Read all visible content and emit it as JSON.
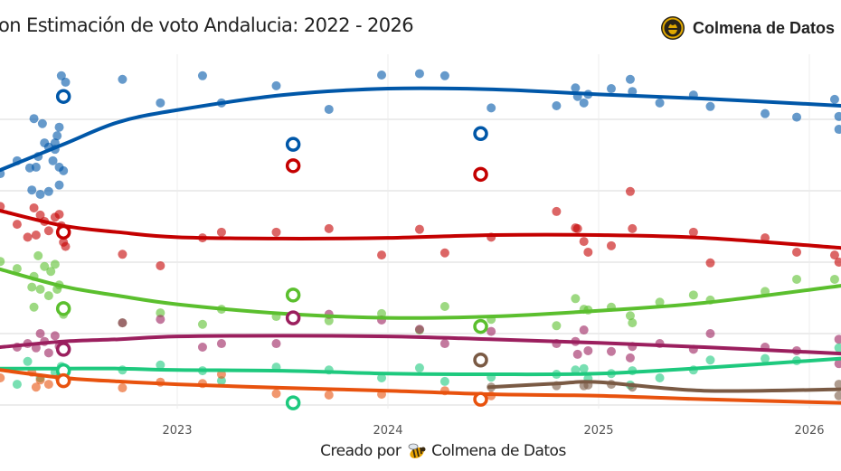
{
  "title": "on Estimación de voto Andalucia: 2022 - 2026",
  "brand": {
    "name": "Colmena de Datos",
    "icon": "bee-logo-icon"
  },
  "footer": {
    "prefix": "Creado por",
    "name": "Colmena de Datos",
    "icon": "bee-icon"
  },
  "chart_data": {
    "type": "scatter",
    "title": "on Estimación de voto Andalucia: 2022 - 2026",
    "xlim": [
      2022.16,
      2026.15
    ],
    "ylim": [
      -1.5,
      49.5
    ],
    "y_gridlines": [
      0,
      10,
      20,
      30,
      40
    ],
    "x_ticks": [
      2023,
      2024,
      2025,
      2026
    ],
    "x_tick_labels": [
      "2023",
      "2024",
      "2025",
      "2026"
    ],
    "grid": true,
    "legend": "none",
    "series": [
      {
        "color": "#0057a8",
        "trend": [
          [
            2022.16,
            32.9
          ],
          [
            2022.46,
            36.5
          ],
          [
            2022.72,
            39.6
          ],
          [
            2023.0,
            41.3
          ],
          [
            2023.5,
            43.4
          ],
          [
            2024.0,
            44.3
          ],
          [
            2024.5,
            44.2
          ],
          [
            2025.0,
            43.5
          ],
          [
            2025.5,
            42.9
          ],
          [
            2026.15,
            41.9
          ]
        ],
        "elections": [
          [
            2022.46,
            43.2
          ],
          [
            2023.55,
            36.5
          ],
          [
            2024.44,
            38.0
          ]
        ],
        "polls": [
          [
            2022.32,
            40.1
          ],
          [
            2022.36,
            39.4
          ],
          [
            2022.45,
            46.1
          ],
          [
            2022.47,
            45.2
          ],
          [
            2022.44,
            38.9
          ],
          [
            2022.33,
            33.3
          ],
          [
            2022.34,
            34.8
          ],
          [
            2022.37,
            36.7
          ],
          [
            2022.39,
            36.1
          ],
          [
            2022.42,
            35.8
          ],
          [
            2022.42,
            36.7
          ],
          [
            2022.3,
            33.2
          ],
          [
            2022.24,
            34.2
          ],
          [
            2022.44,
            33.3
          ],
          [
            2022.43,
            37.7
          ],
          [
            2022.46,
            32.8
          ],
          [
            2022.41,
            34.2
          ],
          [
            2022.16,
            32.4
          ],
          [
            2022.31,
            30.1
          ],
          [
            2022.35,
            29.5
          ],
          [
            2022.39,
            29.9
          ],
          [
            2022.44,
            30.8
          ],
          [
            2022.74,
            45.6
          ],
          [
            2022.92,
            42.3
          ],
          [
            2023.12,
            46.1
          ],
          [
            2023.21,
            42.3
          ],
          [
            2023.47,
            44.7
          ],
          [
            2023.72,
            41.4
          ],
          [
            2023.97,
            46.2
          ],
          [
            2024.15,
            46.4
          ],
          [
            2024.27,
            46.1
          ],
          [
            2024.49,
            41.6
          ],
          [
            2024.8,
            41.9
          ],
          [
            2024.89,
            44.4
          ],
          [
            2024.9,
            43.2
          ],
          [
            2024.93,
            42.3
          ],
          [
            2024.95,
            43.5
          ],
          [
            2025.06,
            44.3
          ],
          [
            2025.15,
            45.6
          ],
          [
            2025.16,
            43.9
          ],
          [
            2025.29,
            42.3
          ],
          [
            2025.45,
            43.4
          ],
          [
            2025.53,
            41.8
          ],
          [
            2025.79,
            40.8
          ],
          [
            2025.94,
            40.3
          ],
          [
            2026.12,
            42.8
          ],
          [
            2026.14,
            40.4
          ],
          [
            2026.14,
            38.6
          ]
        ]
      },
      {
        "color": "#c40000",
        "trend": [
          [
            2022.16,
            27.2
          ],
          [
            2022.46,
            25.1
          ],
          [
            2022.72,
            24.2
          ],
          [
            2023.0,
            23.5
          ],
          [
            2023.5,
            23.3
          ],
          [
            2024.0,
            23.4
          ],
          [
            2024.5,
            23.8
          ],
          [
            2025.0,
            23.8
          ],
          [
            2025.5,
            23.4
          ],
          [
            2026.15,
            22.0
          ]
        ],
        "elections": [
          [
            2022.46,
            24.2
          ],
          [
            2023.55,
            33.5
          ],
          [
            2024.44,
            32.3
          ]
        ],
        "polls": [
          [
            2022.16,
            27.8
          ],
          [
            2022.32,
            27.6
          ],
          [
            2022.35,
            26.6
          ],
          [
            2022.42,
            26.3
          ],
          [
            2022.37,
            25.7
          ],
          [
            2022.44,
            26.7
          ],
          [
            2022.33,
            23.8
          ],
          [
            2022.39,
            24.4
          ],
          [
            2022.45,
            25.1
          ],
          [
            2022.29,
            23.5
          ],
          [
            2022.46,
            22.8
          ],
          [
            2022.47,
            22.2
          ],
          [
            2022.24,
            25.3
          ],
          [
            2022.74,
            21.1
          ],
          [
            2022.92,
            19.5
          ],
          [
            2023.12,
            23.4
          ],
          [
            2023.21,
            24.2
          ],
          [
            2023.47,
            24.2
          ],
          [
            2023.72,
            24.7
          ],
          [
            2023.97,
            21.0
          ],
          [
            2024.15,
            24.6
          ],
          [
            2024.27,
            21.3
          ],
          [
            2024.49,
            23.5
          ],
          [
            2024.8,
            27.1
          ],
          [
            2024.89,
            24.8
          ],
          [
            2024.9,
            24.7
          ],
          [
            2024.93,
            22.9
          ],
          [
            2024.95,
            21.4
          ],
          [
            2025.06,
            22.3
          ],
          [
            2025.15,
            29.9
          ],
          [
            2025.16,
            24.7
          ],
          [
            2025.45,
            24.2
          ],
          [
            2025.53,
            19.9
          ],
          [
            2025.79,
            23.4
          ],
          [
            2025.94,
            21.4
          ],
          [
            2026.12,
            21.0
          ],
          [
            2026.14,
            20.0
          ]
        ]
      },
      {
        "color": "#5bbf2e",
        "trend": [
          [
            2022.16,
            19.0
          ],
          [
            2022.46,
            16.6
          ],
          [
            2022.72,
            15.3
          ],
          [
            2023.0,
            14.1
          ],
          [
            2023.5,
            12.8
          ],
          [
            2024.0,
            12.2
          ],
          [
            2024.5,
            12.4
          ],
          [
            2025.0,
            13.2
          ],
          [
            2025.5,
            14.3
          ],
          [
            2026.15,
            16.7
          ]
        ],
        "elections": [
          [
            2022.46,
            13.5
          ],
          [
            2023.55,
            15.4
          ],
          [
            2024.44,
            11.0
          ]
        ],
        "polls": [
          [
            2022.16,
            20.1
          ],
          [
            2022.24,
            19.1
          ],
          [
            2022.34,
            20.9
          ],
          [
            2022.37,
            19.4
          ],
          [
            2022.4,
            18.7
          ],
          [
            2022.42,
            19.7
          ],
          [
            2022.32,
            18.0
          ],
          [
            2022.31,
            16.5
          ],
          [
            2022.35,
            16.2
          ],
          [
            2022.39,
            15.3
          ],
          [
            2022.43,
            16.2
          ],
          [
            2022.44,
            16.8
          ],
          [
            2022.32,
            13.7
          ],
          [
            2022.46,
            12.7
          ],
          [
            2022.74,
            11.5
          ],
          [
            2022.92,
            12.9
          ],
          [
            2023.12,
            11.3
          ],
          [
            2023.21,
            13.4
          ],
          [
            2023.47,
            12.4
          ],
          [
            2023.72,
            11.8
          ],
          [
            2023.97,
            12.8
          ],
          [
            2024.15,
            10.5
          ],
          [
            2024.27,
            13.8
          ],
          [
            2024.49,
            12.0
          ],
          [
            2024.8,
            11.1
          ],
          [
            2024.89,
            14.9
          ],
          [
            2024.93,
            13.4
          ],
          [
            2024.95,
            13.3
          ],
          [
            2025.06,
            13.7
          ],
          [
            2025.15,
            12.5
          ],
          [
            2025.16,
            11.5
          ],
          [
            2025.29,
            14.4
          ],
          [
            2025.45,
            15.4
          ],
          [
            2025.53,
            14.7
          ],
          [
            2025.79,
            15.9
          ],
          [
            2025.94,
            17.6
          ],
          [
            2026.12,
            17.6
          ]
        ]
      },
      {
        "color": "#9b1f5e",
        "trend": [
          [
            2022.16,
            8.1
          ],
          [
            2022.46,
            8.9
          ],
          [
            2022.72,
            9.2
          ],
          [
            2023.0,
            9.6
          ],
          [
            2023.5,
            9.7
          ],
          [
            2024.0,
            9.6
          ],
          [
            2024.5,
            9.2
          ],
          [
            2025.0,
            8.7
          ],
          [
            2025.5,
            8.1
          ],
          [
            2026.15,
            7.2
          ]
        ],
        "elections": [
          [
            2022.46,
            7.8
          ],
          [
            2023.55,
            12.2
          ]
        ],
        "polls": [
          [
            2022.29,
            8.6
          ],
          [
            2022.35,
            10.0
          ],
          [
            2022.37,
            8.9
          ],
          [
            2022.42,
            9.7
          ],
          [
            2022.44,
            8.2
          ],
          [
            2022.33,
            8.0
          ],
          [
            2022.24,
            8.1
          ],
          [
            2022.39,
            7.3
          ],
          [
            2022.74,
            11.5
          ],
          [
            2022.92,
            12.0
          ],
          [
            2023.12,
            8.1
          ],
          [
            2023.21,
            8.6
          ],
          [
            2023.47,
            8.6
          ],
          [
            2023.72,
            12.7
          ],
          [
            2023.97,
            11.9
          ],
          [
            2024.15,
            10.6
          ],
          [
            2024.27,
            8.6
          ],
          [
            2024.49,
            10.3
          ],
          [
            2024.8,
            8.6
          ],
          [
            2024.89,
            8.9
          ],
          [
            2024.9,
            7.1
          ],
          [
            2024.93,
            10.5
          ],
          [
            2024.95,
            7.6
          ],
          [
            2025.06,
            7.5
          ],
          [
            2025.15,
            6.6
          ],
          [
            2025.16,
            8.2
          ],
          [
            2025.29,
            8.6
          ],
          [
            2025.45,
            7.8
          ],
          [
            2025.53,
            10.0
          ],
          [
            2025.79,
            8.1
          ],
          [
            2025.94,
            7.6
          ],
          [
            2026.14,
            9.2
          ],
          [
            2026.14,
            5.8
          ]
        ]
      },
      {
        "color": "#1ec97e",
        "trend": [
          [
            2022.16,
            5.1
          ],
          [
            2022.46,
            5.1
          ],
          [
            2022.72,
            5.1
          ],
          [
            2023.0,
            4.9
          ],
          [
            2023.5,
            4.8
          ],
          [
            2024.0,
            4.4
          ],
          [
            2024.5,
            4.3
          ],
          [
            2025.0,
            4.4
          ],
          [
            2025.5,
            5.2
          ],
          [
            2026.15,
            6.5
          ]
        ],
        "elections": [
          [
            2022.46,
            4.8
          ],
          [
            2023.55,
            0.3
          ]
        ],
        "polls": [
          [
            2022.29,
            6.1
          ],
          [
            2022.35,
            3.8
          ],
          [
            2022.42,
            4.6
          ],
          [
            2022.24,
            2.9
          ],
          [
            2022.45,
            5.4
          ],
          [
            2022.74,
            4.9
          ],
          [
            2022.92,
            5.6
          ],
          [
            2023.12,
            4.8
          ],
          [
            2023.21,
            3.4
          ],
          [
            2023.47,
            5.3
          ],
          [
            2023.72,
            4.9
          ],
          [
            2023.97,
            3.8
          ],
          [
            2024.15,
            5.2
          ],
          [
            2024.27,
            3.3
          ],
          [
            2024.49,
            3.9
          ],
          [
            2024.8,
            4.3
          ],
          [
            2024.89,
            4.9
          ],
          [
            2024.93,
            5.1
          ],
          [
            2024.95,
            3.7
          ],
          [
            2025.06,
            4.4
          ],
          [
            2025.15,
            2.8
          ],
          [
            2025.16,
            4.8
          ],
          [
            2025.29,
            3.8
          ],
          [
            2025.45,
            4.9
          ],
          [
            2025.53,
            6.3
          ],
          [
            2025.79,
            6.5
          ],
          [
            2025.94,
            6.2
          ],
          [
            2026.14,
            8.0
          ]
        ]
      },
      {
        "color": "#e8520e",
        "trend": [
          [
            2022.16,
            4.9
          ],
          [
            2022.46,
            3.8
          ],
          [
            2022.72,
            3.3
          ],
          [
            2023.0,
            2.9
          ],
          [
            2023.5,
            2.4
          ],
          [
            2024.0,
            2.0
          ],
          [
            2024.5,
            1.5
          ],
          [
            2025.0,
            1.3
          ],
          [
            2025.5,
            0.8
          ],
          [
            2026.15,
            0.3
          ]
        ],
        "elections": [
          [
            2022.46,
            3.4
          ],
          [
            2024.44,
            0.8
          ]
        ],
        "polls": [
          [
            2022.31,
            4.6
          ],
          [
            2022.35,
            3.5
          ],
          [
            2022.39,
            2.9
          ],
          [
            2022.44,
            3.8
          ],
          [
            2022.33,
            2.5
          ],
          [
            2022.16,
            3.8
          ],
          [
            2022.74,
            2.4
          ],
          [
            2022.92,
            3.2
          ],
          [
            2023.12,
            3.0
          ],
          [
            2023.21,
            4.3
          ],
          [
            2023.47,
            1.6
          ],
          [
            2023.72,
            1.4
          ],
          [
            2023.97,
            1.5
          ],
          [
            2024.27,
            2.0
          ],
          [
            2024.49,
            1.3
          ]
        ]
      },
      {
        "color": "#7a5a44",
        "trend": [
          [
            2024.48,
            2.5
          ],
          [
            2024.8,
            3.0
          ],
          [
            2025.0,
            3.2
          ],
          [
            2025.5,
            2.0
          ],
          [
            2026.15,
            2.2
          ]
        ],
        "elections": [
          [
            2024.44,
            6.3
          ]
        ],
        "polls": [
          [
            2024.49,
            2.5
          ],
          [
            2024.8,
            2.7
          ],
          [
            2024.93,
            2.7
          ],
          [
            2024.95,
            2.8
          ],
          [
            2025.06,
            2.9
          ],
          [
            2025.16,
            2.5
          ],
          [
            2026.14,
            2.9
          ],
          [
            2026.14,
            1.3
          ]
        ]
      }
    ]
  }
}
